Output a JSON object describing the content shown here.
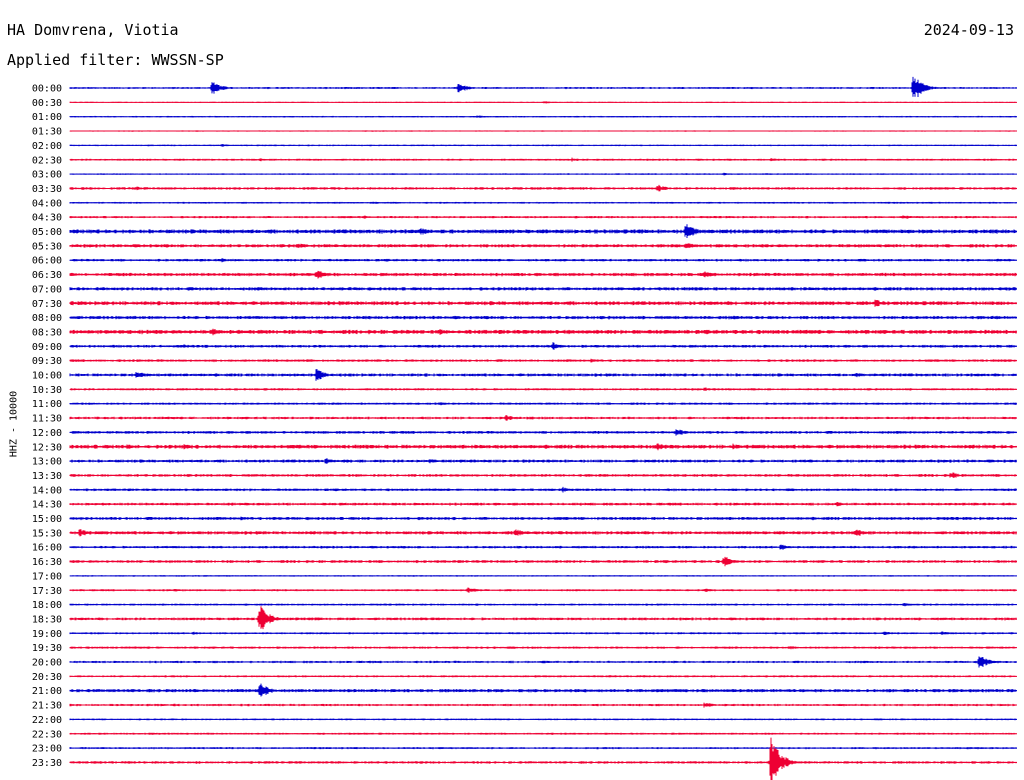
{
  "header": {
    "station": "HA Domvrena, Viotia",
    "date": "2024-09-13",
    "filter": "Applied filter: WWSSN-SP",
    "channel": "HHZ - 10000"
  },
  "chart_data": {
    "type": "line",
    "title": "HA Domvrena, Viotia",
    "ylabel": "HHZ - 10000",
    "series_colors": [
      "#0000cc",
      "#ee0033"
    ],
    "rows": [
      {
        "label": "00:00",
        "noise": 0.8,
        "events": [
          [
            0.15,
            7
          ],
          [
            0.41,
            5
          ],
          [
            0.89,
            14
          ]
        ]
      },
      {
        "label": "00:30",
        "noise": 0.5,
        "events": [
          [
            0.5,
            1.5
          ]
        ]
      },
      {
        "label": "01:00",
        "noise": 0.6,
        "events": [
          [
            0.43,
            1.5
          ]
        ]
      },
      {
        "label": "01:30",
        "noise": 0.5,
        "events": []
      },
      {
        "label": "02:00",
        "noise": 0.6,
        "events": [
          [
            0.16,
            1.5
          ]
        ]
      },
      {
        "label": "02:30",
        "noise": 0.8,
        "events": [
          [
            0.2,
            1.5
          ],
          [
            0.53,
            2
          ],
          [
            0.74,
            2
          ]
        ]
      },
      {
        "label": "03:00",
        "noise": 0.6,
        "events": [
          [
            0.69,
            1.5
          ]
        ]
      },
      {
        "label": "03:30",
        "noise": 1.0,
        "events": [
          [
            0.07,
            2
          ],
          [
            0.62,
            4
          ]
        ]
      },
      {
        "label": "04:00",
        "noise": 0.7,
        "events": [
          [
            0.32,
            1.5
          ]
        ]
      },
      {
        "label": "04:30",
        "noise": 0.9,
        "events": [
          [
            0.31,
            2
          ],
          [
            0.88,
            2.5
          ]
        ]
      },
      {
        "label": "05:00",
        "noise": 1.6,
        "events": [
          [
            0.37,
            4
          ],
          [
            0.65,
            9
          ]
        ]
      },
      {
        "label": "05:30",
        "noise": 1.3,
        "events": [
          [
            0.24,
            3
          ],
          [
            0.65,
            4
          ]
        ]
      },
      {
        "label": "06:00",
        "noise": 1.0,
        "events": [
          [
            0.16,
            2
          ],
          [
            0.98,
            2
          ]
        ]
      },
      {
        "label": "06:30",
        "noise": 1.3,
        "events": [
          [
            0.26,
            5
          ],
          [
            0.67,
            3
          ]
        ]
      },
      {
        "label": "07:00",
        "noise": 1.3,
        "events": [
          [
            0.58,
            2
          ]
        ]
      },
      {
        "label": "07:30",
        "noise": 1.5,
        "events": [
          [
            0.3,
            2
          ],
          [
            0.85,
            4
          ]
        ]
      },
      {
        "label": "08:00",
        "noise": 1.3,
        "events": [
          [
            0.7,
            2
          ]
        ]
      },
      {
        "label": "08:30",
        "noise": 1.6,
        "events": [
          [
            0.15,
            4
          ],
          [
            0.39,
            3
          ]
        ]
      },
      {
        "label": "09:00",
        "noise": 1.1,
        "events": [
          [
            0.12,
            2
          ],
          [
            0.51,
            4
          ]
        ]
      },
      {
        "label": "09:30",
        "noise": 1.0,
        "events": [
          [
            0.25,
            2
          ],
          [
            0.55,
            2
          ]
        ]
      },
      {
        "label": "10:00",
        "noise": 1.2,
        "events": [
          [
            0.07,
            4
          ],
          [
            0.26,
            6
          ],
          [
            0.83,
            2
          ]
        ]
      },
      {
        "label": "10:30",
        "noise": 0.9,
        "events": [
          [
            0.67,
            2
          ]
        ]
      },
      {
        "label": "11:00",
        "noise": 0.9,
        "events": [
          [
            0.39,
            2
          ]
        ]
      },
      {
        "label": "11:30",
        "noise": 1.0,
        "events": [
          [
            0.46,
            3
          ]
        ]
      },
      {
        "label": "12:00",
        "noise": 1.1,
        "events": [
          [
            0.64,
            4
          ]
        ]
      },
      {
        "label": "12:30",
        "noise": 1.5,
        "events": [
          [
            0.06,
            3
          ],
          [
            0.12,
            2.5
          ],
          [
            0.62,
            4
          ],
          [
            0.7,
            3
          ]
        ]
      },
      {
        "label": "13:00",
        "noise": 1.2,
        "events": [
          [
            0.27,
            3
          ],
          [
            0.38,
            2
          ],
          [
            0.48,
            2
          ],
          [
            0.78,
            2
          ]
        ]
      },
      {
        "label": "13:30",
        "noise": 1.1,
        "events": [
          [
            0.93,
            3.5
          ]
        ]
      },
      {
        "label": "14:00",
        "noise": 1.0,
        "events": [
          [
            0.52,
            3
          ]
        ]
      },
      {
        "label": "14:30",
        "noise": 1.1,
        "events": [
          [
            0.81,
            2.5
          ]
        ]
      },
      {
        "label": "15:00",
        "noise": 1.2,
        "events": [
          [
            0.18,
            2
          ],
          [
            0.37,
            2
          ]
        ]
      },
      {
        "label": "15:30",
        "noise": 1.3,
        "events": [
          [
            0.01,
            4
          ],
          [
            0.47,
            4
          ],
          [
            0.83,
            4
          ]
        ]
      },
      {
        "label": "16:00",
        "noise": 1.0,
        "events": [
          [
            0.75,
            3
          ]
        ]
      },
      {
        "label": "16:30",
        "noise": 1.1,
        "events": [
          [
            0.69,
            6
          ]
        ]
      },
      {
        "label": "17:00",
        "noise": 0.6,
        "events": []
      },
      {
        "label": "17:30",
        "noise": 0.8,
        "events": [
          [
            0.11,
            1.5
          ],
          [
            0.42,
            3
          ],
          [
            0.67,
            2
          ]
        ]
      },
      {
        "label": "18:00",
        "noise": 0.8,
        "events": [
          [
            0.88,
            2
          ]
        ]
      },
      {
        "label": "18:30",
        "noise": 1.1,
        "events": [
          [
            0.2,
            14
          ],
          [
            0.26,
            2
          ],
          [
            0.37,
            1.5
          ]
        ]
      },
      {
        "label": "19:00",
        "noise": 0.8,
        "events": [
          [
            0.13,
            1.5
          ],
          [
            0.86,
            2
          ],
          [
            0.92,
            2
          ]
        ]
      },
      {
        "label": "19:30",
        "noise": 0.9,
        "events": [
          [
            0.76,
            2
          ]
        ]
      },
      {
        "label": "20:00",
        "noise": 0.9,
        "events": [
          [
            0.5,
            2
          ],
          [
            0.96,
            7
          ]
        ]
      },
      {
        "label": "20:30",
        "noise": 0.8,
        "events": []
      },
      {
        "label": "21:00",
        "noise": 1.3,
        "events": [
          [
            0.13,
            2
          ],
          [
            0.2,
            8
          ]
        ]
      },
      {
        "label": "21:30",
        "noise": 0.9,
        "events": [
          [
            0.11,
            1.5
          ],
          [
            0.67,
            3
          ]
        ]
      },
      {
        "label": "22:00",
        "noise": 0.7,
        "events": []
      },
      {
        "label": "22:30",
        "noise": 0.8,
        "events": []
      },
      {
        "label": "23:00",
        "noise": 0.8,
        "events": []
      },
      {
        "label": "23:30",
        "noise": 1.0,
        "events": [
          [
            0.74,
            26
          ]
        ]
      }
    ]
  }
}
